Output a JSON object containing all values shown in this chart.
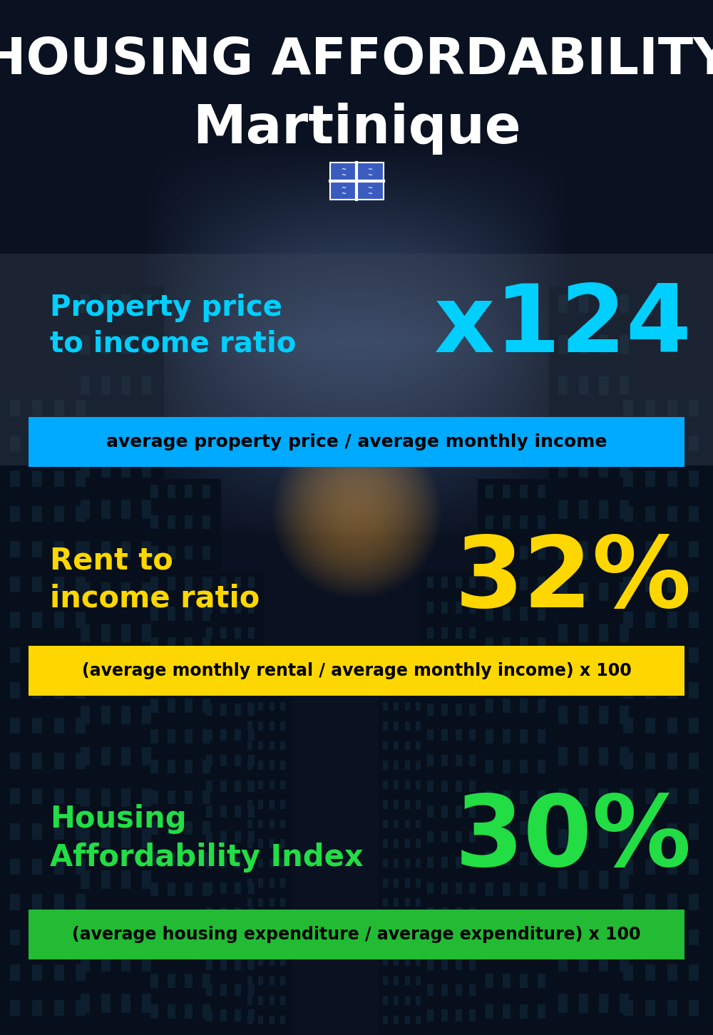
{
  "title_line1": "HOUSING AFFORDABILITY",
  "title_line2": "Martinique",
  "bg_color": "#060e1a",
  "section1_label": "Property price\nto income ratio",
  "section1_value": "x124",
  "section1_label_color": "#00cfff",
  "section1_value_color": "#00cfff",
  "section1_banner_text": "average property price / average monthly income",
  "section1_banner_bg": "#00aaff",
  "section1_banner_text_color": "#000000",
  "section2_label": "Rent to\nincome ratio",
  "section2_value": "32%",
  "section2_label_color": "#ffd700",
  "section2_value_color": "#ffd700",
  "section2_banner_text": "(average monthly rental / average monthly income) x 100",
  "section2_banner_bg": "#ffd700",
  "section2_banner_text_color": "#000000",
  "section3_label": "Housing\nAffordability Index",
  "section3_value": "30%",
  "section3_label_color": "#22dd44",
  "section3_value_color": "#22dd44",
  "section3_banner_text": "(average housing expenditure / average expenditure) x 100",
  "section3_banner_bg": "#22bb33",
  "section3_banner_text_color": "#000000",
  "title_color": "#ffffff",
  "subtitle_color": "#ffffff"
}
